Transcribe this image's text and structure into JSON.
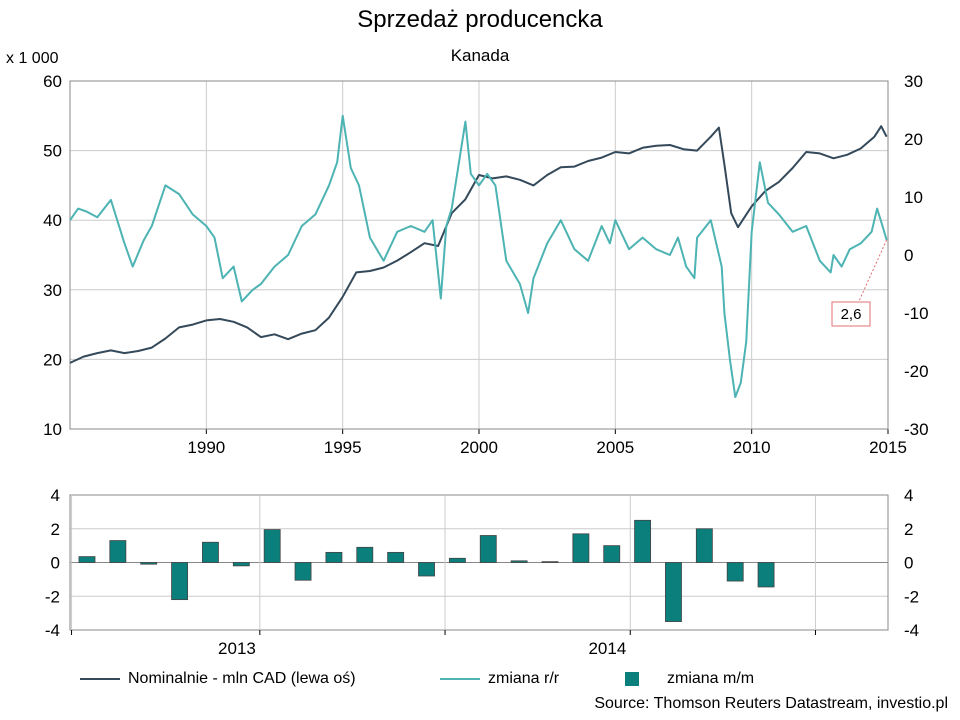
{
  "title": "Sprzedaż producencka",
  "subtitle": "Kanada",
  "unit_label": "x 1 000",
  "source": "Source: Thomson Reuters Datastream, investio.pl",
  "legend": {
    "nominal": "Nominalnie - mln CAD (lewa oś)",
    "yoy": "zmiana r/r",
    "mom": "zmiana m/m"
  },
  "colors": {
    "nominal": "#34495a",
    "yoy": "#4db3b3",
    "mom": "#0a7f7c",
    "grid": "#cccccc",
    "annotation_border": "#e07070"
  },
  "chart_data": [
    {
      "type": "line",
      "x_ticks": [
        1990,
        1995,
        2000,
        2005,
        2010,
        2015
      ],
      "xlim": [
        1985,
        2015
      ],
      "left_axis": {
        "ylim": [
          10,
          60
        ],
        "ticks": [
          10,
          20,
          30,
          40,
          50,
          60
        ]
      },
      "right_axis": {
        "ylim": [
          -30,
          30
        ],
        "ticks": [
          -30,
          -20,
          -10,
          0,
          10,
          20,
          30
        ]
      },
      "annotation": {
        "label": "2,6",
        "x": 2014.95,
        "y": 2.6
      },
      "series": [
        {
          "name": "Nominalnie - mln CAD (lewa oś)",
          "axis": "left",
          "points": [
            [
              1985.0,
              19.5
            ],
            [
              1985.5,
              20.4
            ],
            [
              1986.0,
              20.9
            ],
            [
              1986.5,
              21.3
            ],
            [
              1987.0,
              20.9
            ],
            [
              1987.5,
              21.2
            ],
            [
              1988.0,
              21.7
            ],
            [
              1988.5,
              23.0
            ],
            [
              1989.0,
              24.6
            ],
            [
              1989.5,
              25.0
            ],
            [
              1990.0,
              25.6
            ],
            [
              1990.5,
              25.8
            ],
            [
              1991.0,
              25.4
            ],
            [
              1991.5,
              24.6
            ],
            [
              1992.0,
              23.2
            ],
            [
              1992.5,
              23.6
            ],
            [
              1993.0,
              22.9
            ],
            [
              1993.5,
              23.7
            ],
            [
              1994.0,
              24.2
            ],
            [
              1994.5,
              26.0
            ],
            [
              1995.0,
              29.0
            ],
            [
              1995.5,
              32.5
            ],
            [
              1996.0,
              32.7
            ],
            [
              1996.5,
              33.2
            ],
            [
              1997.0,
              34.2
            ],
            [
              1997.5,
              35.4
            ],
            [
              1998.0,
              36.7
            ],
            [
              1998.5,
              36.3
            ],
            [
              1999.0,
              41.0
            ],
            [
              1999.5,
              43.0
            ],
            [
              2000.0,
              46.5
            ],
            [
              2000.5,
              46.0
            ],
            [
              2001.0,
              46.3
            ],
            [
              2001.5,
              45.8
            ],
            [
              2002.0,
              45.0
            ],
            [
              2002.5,
              46.5
            ],
            [
              2003.0,
              47.6
            ],
            [
              2003.5,
              47.7
            ],
            [
              2004.0,
              48.5
            ],
            [
              2004.5,
              49.0
            ],
            [
              2005.0,
              49.8
            ],
            [
              2005.5,
              49.6
            ],
            [
              2006.0,
              50.4
            ],
            [
              2006.5,
              50.7
            ],
            [
              2007.0,
              50.8
            ],
            [
              2007.5,
              50.2
            ],
            [
              2008.0,
              50.0
            ],
            [
              2008.5,
              52.0
            ],
            [
              2008.8,
              53.3
            ],
            [
              2009.0,
              48.0
            ],
            [
              2009.25,
              41.0
            ],
            [
              2009.5,
              39.0
            ],
            [
              2010.0,
              42.0
            ],
            [
              2010.5,
              44.2
            ],
            [
              2011.0,
              45.5
            ],
            [
              2011.5,
              47.5
            ],
            [
              2012.0,
              49.8
            ],
            [
              2012.5,
              49.6
            ],
            [
              2013.0,
              48.9
            ],
            [
              2013.5,
              49.4
            ],
            [
              2014.0,
              50.3
            ],
            [
              2014.5,
              52.0
            ],
            [
              2014.75,
              53.5
            ],
            [
              2014.95,
              52.0
            ]
          ]
        },
        {
          "name": "zmiana r/r",
          "axis": "right",
          "points": [
            [
              1985.0,
              6.0
            ],
            [
              1985.3,
              8.0
            ],
            [
              1985.6,
              7.5
            ],
            [
              1986.0,
              6.5
            ],
            [
              1986.5,
              9.5
            ],
            [
              1987.0,
              2.0
            ],
            [
              1987.3,
              -2.0
            ],
            [
              1987.7,
              2.5
            ],
            [
              1988.0,
              5.0
            ],
            [
              1988.5,
              12.0
            ],
            [
              1989.0,
              10.5
            ],
            [
              1989.5,
              7.0
            ],
            [
              1990.0,
              5.0
            ],
            [
              1990.3,
              3.0
            ],
            [
              1990.6,
              -4.0
            ],
            [
              1991.0,
              -2.0
            ],
            [
              1991.3,
              -8.0
            ],
            [
              1991.7,
              -6.0
            ],
            [
              1992.0,
              -5.0
            ],
            [
              1992.5,
              -2.0
            ],
            [
              1993.0,
              0.0
            ],
            [
              1993.5,
              5.0
            ],
            [
              1994.0,
              7.0
            ],
            [
              1994.5,
              12.0
            ],
            [
              1994.8,
              16.0
            ],
            [
              1995.0,
              24.0
            ],
            [
              1995.3,
              15.0
            ],
            [
              1995.6,
              12.0
            ],
            [
              1996.0,
              3.0
            ],
            [
              1996.5,
              -1.0
            ],
            [
              1997.0,
              4.0
            ],
            [
              1997.5,
              5.0
            ],
            [
              1998.0,
              4.0
            ],
            [
              1998.3,
              6.0
            ],
            [
              1998.6,
              -7.5
            ],
            [
              1998.8,
              5.0
            ],
            [
              1999.0,
              8.0
            ],
            [
              1999.5,
              23.0
            ],
            [
              1999.7,
              14.0
            ],
            [
              2000.0,
              12.0
            ],
            [
              2000.3,
              14.0
            ],
            [
              2000.6,
              12.0
            ],
            [
              2001.0,
              -1.0
            ],
            [
              2001.5,
              -5.0
            ],
            [
              2001.8,
              -10.0
            ],
            [
              2002.0,
              -4.0
            ],
            [
              2002.5,
              2.0
            ],
            [
              2003.0,
              6.0
            ],
            [
              2003.5,
              1.0
            ],
            [
              2004.0,
              -1.0
            ],
            [
              2004.5,
              5.0
            ],
            [
              2004.8,
              2.0
            ],
            [
              2005.0,
              6.0
            ],
            [
              2005.5,
              1.0
            ],
            [
              2006.0,
              3.0
            ],
            [
              2006.5,
              1.0
            ],
            [
              2007.0,
              0.0
            ],
            [
              2007.3,
              3.0
            ],
            [
              2007.6,
              -2.0
            ],
            [
              2007.9,
              -4.0
            ],
            [
              2008.0,
              3.0
            ],
            [
              2008.5,
              6.0
            ],
            [
              2008.9,
              -2.0
            ],
            [
              2009.0,
              -10.0
            ],
            [
              2009.2,
              -18.0
            ],
            [
              2009.4,
              -24.5
            ],
            [
              2009.6,
              -22.0
            ],
            [
              2009.8,
              -15.0
            ],
            [
              2010.0,
              4.0
            ],
            [
              2010.3,
              16.0
            ],
            [
              2010.6,
              9.0
            ],
            [
              2011.0,
              7.0
            ],
            [
              2011.5,
              4.0
            ],
            [
              2012.0,
              5.0
            ],
            [
              2012.5,
              -1.0
            ],
            [
              2012.9,
              -3.0
            ],
            [
              2013.0,
              0.0
            ],
            [
              2013.3,
              -2.0
            ],
            [
              2013.6,
              1.0
            ],
            [
              2014.0,
              2.0
            ],
            [
              2014.4,
              4.0
            ],
            [
              2014.6,
              8.0
            ],
            [
              2014.8,
              5.0
            ],
            [
              2014.95,
              2.6
            ]
          ]
        }
      ]
    },
    {
      "type": "bar",
      "x_ticks": [
        "2013",
        "2014"
      ],
      "ylim": [
        -4,
        4
      ],
      "y_ticks": [
        -4,
        -2,
        0,
        2,
        4
      ],
      "series": [
        {
          "name": "zmiana m/m",
          "values": [
            0.35,
            1.3,
            -0.1,
            -2.2,
            1.2,
            -0.2,
            1.95,
            -1.05,
            0.6,
            0.9,
            0.6,
            -0.8,
            0.25,
            1.6,
            0.1,
            0.05,
            1.7,
            1.0,
            2.5,
            -3.5,
            2.0,
            -1.1,
            -1.45
          ]
        }
      ]
    }
  ]
}
